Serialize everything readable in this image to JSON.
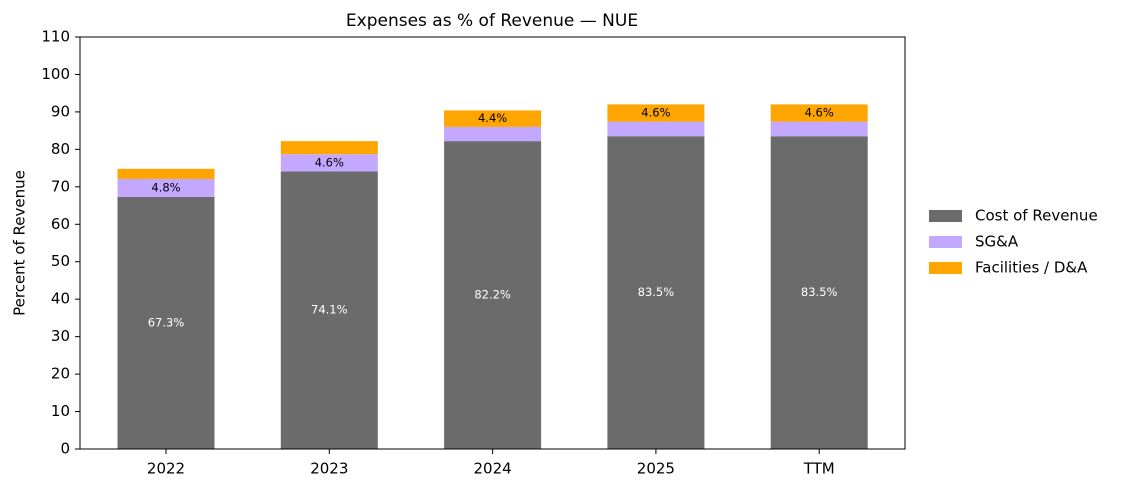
{
  "chart_data": {
    "type": "stacked-bar",
    "title": "Expenses as % of Revenue — NUE",
    "ylabel": "Percent of Revenue",
    "categories": [
      "2022",
      "2023",
      "2024",
      "2025",
      "TTM"
    ],
    "series": [
      {
        "name": "Cost of Revenue",
        "color": "#6b6b6b",
        "values": [
          67.3,
          74.1,
          82.2,
          83.5,
          83.5
        ],
        "value_labels": [
          "67.3%",
          "74.1%",
          "82.2%",
          "83.5%",
          "83.5%"
        ],
        "label_color": "#ffffff"
      },
      {
        "name": "SG&A",
        "color": "#c4a8ff",
        "values": [
          4.8,
          4.6,
          3.8,
          3.9,
          3.9
        ],
        "value_labels": [
          "4.8%",
          "4.6%",
          null,
          null,
          null
        ],
        "label_color": "#000000"
      },
      {
        "name": "Facilities / D&A",
        "color": "#ffa500",
        "values": [
          2.7,
          3.5,
          4.4,
          4.6,
          4.6
        ],
        "value_labels": [
          null,
          null,
          "4.4%",
          "4.6%",
          "4.6%"
        ],
        "label_color": "#000000"
      }
    ],
    "ylim": [
      0,
      110
    ],
    "yticks": [
      0,
      10,
      20,
      30,
      40,
      50,
      60,
      70,
      80,
      90,
      100,
      110
    ],
    "grid": false,
    "legend": "right"
  }
}
